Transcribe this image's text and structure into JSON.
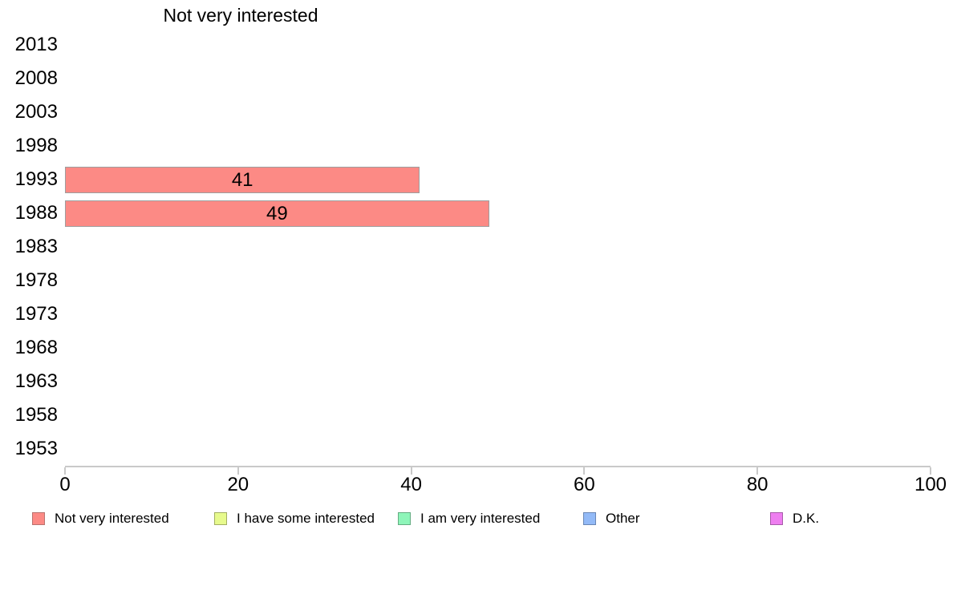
{
  "chart_data": {
    "type": "bar",
    "orientation": "horizontal",
    "title": "Not very interested",
    "categories": [
      "2013",
      "2008",
      "2003",
      "1998",
      "1993",
      "1988",
      "1983",
      "1978",
      "1973",
      "1968",
      "1963",
      "1958",
      "1953"
    ],
    "values": [
      null,
      null,
      null,
      null,
      41,
      49,
      null,
      null,
      null,
      null,
      null,
      null,
      null
    ],
    "xlim": [
      0,
      100
    ],
    "xticks": [
      0,
      20,
      40,
      60,
      80,
      100
    ],
    "grid": false,
    "legend_position": "bottom",
    "bar_color": "#fc8a85",
    "bar_border_color": "#9e9e9e",
    "axis_color": "#c9c9c9",
    "legend": [
      {
        "label": "Not very interested",
        "fill": "#fc8a85",
        "border": "#b9736f"
      },
      {
        "label": "I have some interested",
        "fill": "#e7fa8d",
        "border": "#a3af63"
      },
      {
        "label": "I am very interested",
        "fill": "#8ef5b9",
        "border": "#64ac82"
      },
      {
        "label": "Other",
        "fill": "#93baf7",
        "border": "#6a87b5"
      },
      {
        "label": "D.K.",
        "fill": "#ee7ef0",
        "border": "#a75ba9"
      }
    ]
  }
}
